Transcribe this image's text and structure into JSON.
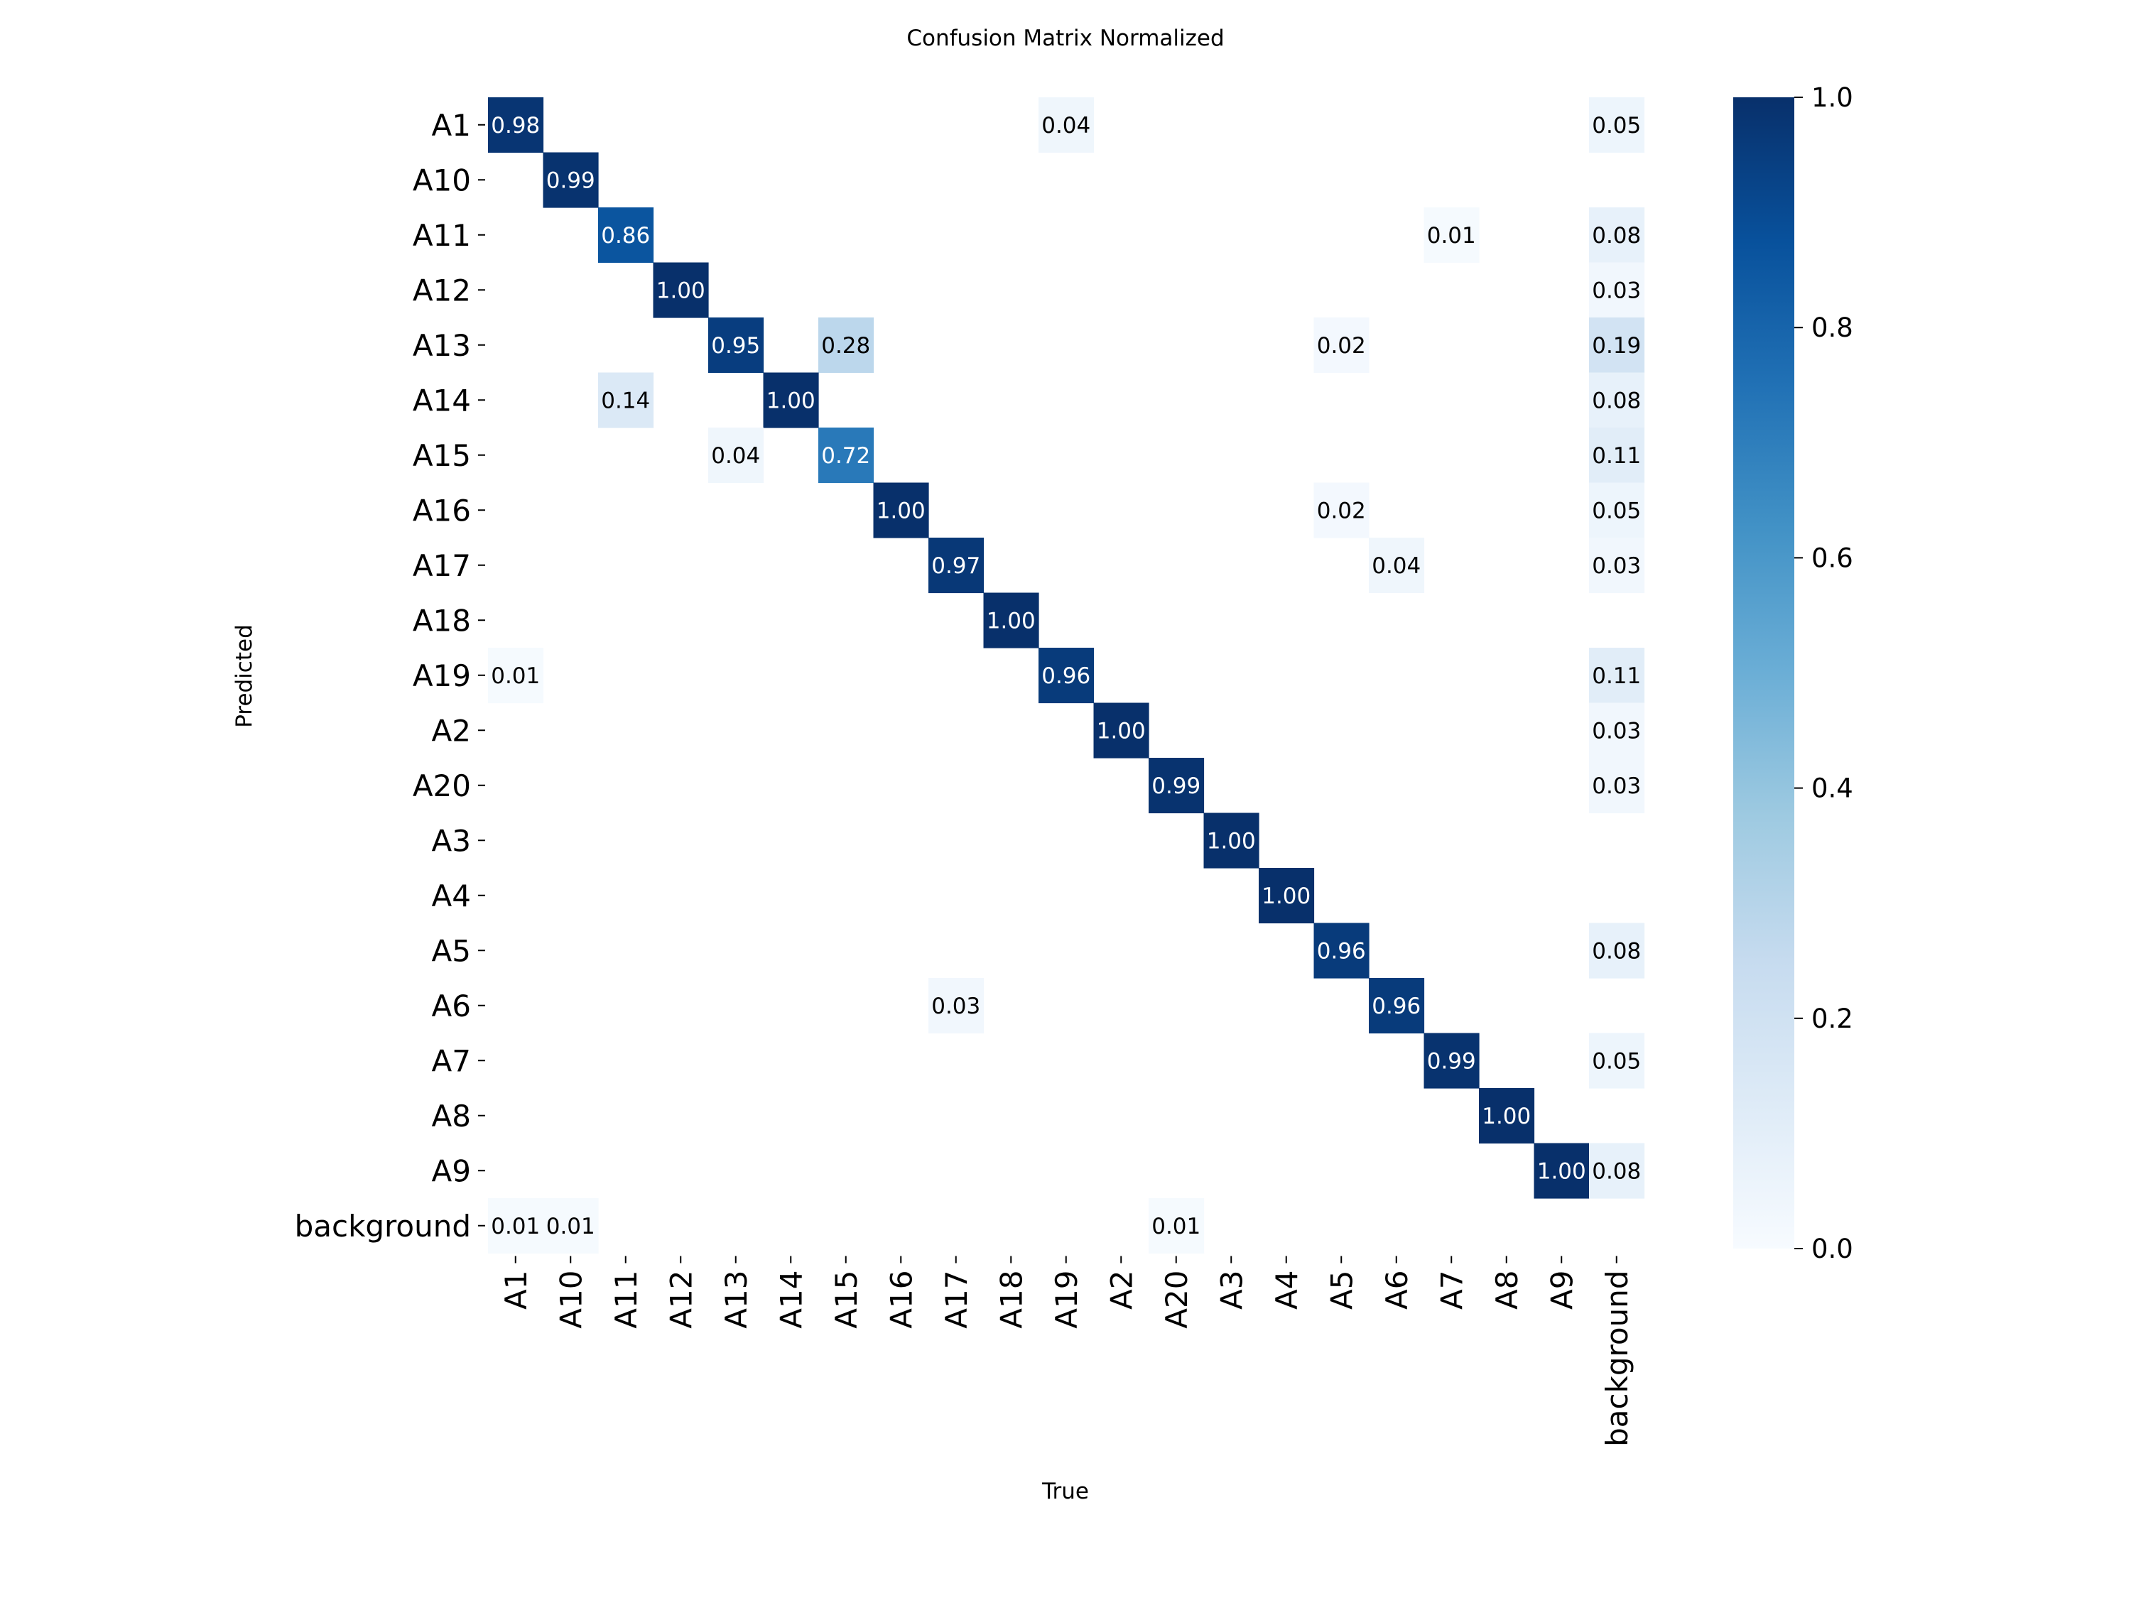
{
  "chart_data": {
    "type": "heatmap",
    "title": "Confusion Matrix Normalized",
    "xlabel": "True",
    "ylabel": "Predicted",
    "categories": [
      "A1",
      "A10",
      "A11",
      "A12",
      "A13",
      "A14",
      "A15",
      "A16",
      "A17",
      "A18",
      "A19",
      "A2",
      "A20",
      "A3",
      "A4",
      "A5",
      "A6",
      "A7",
      "A8",
      "A9",
      "background"
    ],
    "colormap": "Blues",
    "color_range": [
      0,
      1
    ],
    "colorbar_ticks": [
      0.0,
      0.2,
      0.4,
      0.6,
      0.8,
      1.0
    ],
    "colorbar_tick_labels": [
      "0.0",
      "0.2",
      "0.4",
      "0.6",
      "0.8",
      "1.0"
    ],
    "colors": {
      "low": "#f7fbff",
      "high": "#08306b"
    },
    "cells": [
      {
        "row": "A1",
        "col": "A1",
        "value": 0.98,
        "label": "0.98"
      },
      {
        "row": "A1",
        "col": "A19",
        "value": 0.04,
        "label": "0.04"
      },
      {
        "row": "A1",
        "col": "background",
        "value": 0.05,
        "label": "0.05"
      },
      {
        "row": "A10",
        "col": "A10",
        "value": 0.99,
        "label": "0.99"
      },
      {
        "row": "A11",
        "col": "A11",
        "value": 0.86,
        "label": "0.86"
      },
      {
        "row": "A11",
        "col": "A7",
        "value": 0.01,
        "label": "0.01"
      },
      {
        "row": "A11",
        "col": "background",
        "value": 0.08,
        "label": "0.08"
      },
      {
        "row": "A12",
        "col": "A12",
        "value": 1.0,
        "label": "1.00"
      },
      {
        "row": "A12",
        "col": "background",
        "value": 0.03,
        "label": "0.03"
      },
      {
        "row": "A13",
        "col": "A13",
        "value": 0.95,
        "label": "0.95"
      },
      {
        "row": "A13",
        "col": "A15",
        "value": 0.28,
        "label": "0.28"
      },
      {
        "row": "A13",
        "col": "A5",
        "value": 0.02,
        "label": "0.02"
      },
      {
        "row": "A13",
        "col": "background",
        "value": 0.19,
        "label": "0.19"
      },
      {
        "row": "A14",
        "col": "A11",
        "value": 0.14,
        "label": "0.14"
      },
      {
        "row": "A14",
        "col": "A14",
        "value": 1.0,
        "label": "1.00"
      },
      {
        "row": "A14",
        "col": "background",
        "value": 0.08,
        "label": "0.08"
      },
      {
        "row": "A15",
        "col": "A13",
        "value": 0.04,
        "label": "0.04"
      },
      {
        "row": "A15",
        "col": "A15",
        "value": 0.72,
        "label": "0.72"
      },
      {
        "row": "A15",
        "col": "background",
        "value": 0.11,
        "label": "0.11"
      },
      {
        "row": "A16",
        "col": "A16",
        "value": 1.0,
        "label": "1.00"
      },
      {
        "row": "A16",
        "col": "A5",
        "value": 0.02,
        "label": "0.02"
      },
      {
        "row": "A16",
        "col": "background",
        "value": 0.05,
        "label": "0.05"
      },
      {
        "row": "A17",
        "col": "A17",
        "value": 0.97,
        "label": "0.97"
      },
      {
        "row": "A17",
        "col": "A6",
        "value": 0.04,
        "label": "0.04"
      },
      {
        "row": "A17",
        "col": "background",
        "value": 0.03,
        "label": "0.03"
      },
      {
        "row": "A18",
        "col": "A18",
        "value": 1.0,
        "label": "1.00"
      },
      {
        "row": "A19",
        "col": "A1",
        "value": 0.01,
        "label": "0.01"
      },
      {
        "row": "A19",
        "col": "A19",
        "value": 0.96,
        "label": "0.96"
      },
      {
        "row": "A19",
        "col": "background",
        "value": 0.11,
        "label": "0.11"
      },
      {
        "row": "A2",
        "col": "A2",
        "value": 1.0,
        "label": "1.00"
      },
      {
        "row": "A2",
        "col": "background",
        "value": 0.03,
        "label": "0.03"
      },
      {
        "row": "A20",
        "col": "A20",
        "value": 0.99,
        "label": "0.99"
      },
      {
        "row": "A20",
        "col": "background",
        "value": 0.03,
        "label": "0.03"
      },
      {
        "row": "A3",
        "col": "A3",
        "value": 1.0,
        "label": "1.00"
      },
      {
        "row": "A4",
        "col": "A4",
        "value": 1.0,
        "label": "1.00"
      },
      {
        "row": "A5",
        "col": "A5",
        "value": 0.96,
        "label": "0.96"
      },
      {
        "row": "A5",
        "col": "background",
        "value": 0.08,
        "label": "0.08"
      },
      {
        "row": "A6",
        "col": "A17",
        "value": 0.03,
        "label": "0.03"
      },
      {
        "row": "A6",
        "col": "A6",
        "value": 0.96,
        "label": "0.96"
      },
      {
        "row": "A7",
        "col": "A7",
        "value": 0.99,
        "label": "0.99"
      },
      {
        "row": "A7",
        "col": "background",
        "value": 0.05,
        "label": "0.05"
      },
      {
        "row": "A8",
        "col": "A8",
        "value": 1.0,
        "label": "1.00"
      },
      {
        "row": "A9",
        "col": "A9",
        "value": 1.0,
        "label": "1.00"
      },
      {
        "row": "A9",
        "col": "background",
        "value": 0.08,
        "label": "0.08"
      },
      {
        "row": "background",
        "col": "A1",
        "value": 0.01,
        "label": "0.01"
      },
      {
        "row": "background",
        "col": "A10",
        "value": 0.01,
        "label": "0.01"
      },
      {
        "row": "background",
        "col": "A20",
        "value": 0.01,
        "label": "0.01"
      }
    ]
  }
}
